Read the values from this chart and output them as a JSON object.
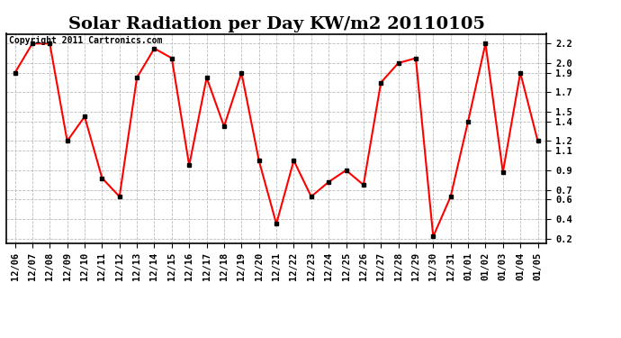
{
  "title": "Solar Radiation per Day KW/m2 20110105",
  "copyright_text": "Copyright 2011 Cartronics.com",
  "labels": [
    "12/06",
    "12/07",
    "12/08",
    "12/09",
    "12/10",
    "12/11",
    "12/12",
    "12/13",
    "12/14",
    "12/15",
    "12/16",
    "12/17",
    "12/18",
    "12/19",
    "12/20",
    "12/21",
    "12/22",
    "12/23",
    "12/24",
    "12/25",
    "12/26",
    "12/27",
    "12/28",
    "12/29",
    "12/30",
    "12/31",
    "01/01",
    "01/02",
    "01/03",
    "01/04",
    "01/05"
  ],
  "values": [
    1.9,
    2.2,
    2.2,
    1.2,
    1.45,
    0.82,
    0.63,
    1.85,
    2.15,
    2.05,
    0.95,
    1.85,
    1.35,
    1.9,
    1.0,
    0.35,
    1.0,
    0.63,
    0.78,
    0.9,
    0.75,
    1.8,
    2.0,
    2.05,
    0.22,
    0.63,
    1.4,
    2.2,
    0.88,
    1.9,
    1.2
  ],
  "line_color": "#ff0000",
  "marker_color": "#000000",
  "bg_color": "#ffffff",
  "grid_color": "#bbbbbb",
  "ylim": [
    0.15,
    2.3
  ],
  "yticks": [
    0.2,
    0.4,
    0.6,
    0.7,
    0.9,
    1.1,
    1.2,
    1.4,
    1.5,
    1.7,
    1.9,
    2.0,
    2.2
  ],
  "title_fontsize": 14,
  "tick_fontsize": 7.5,
  "copyright_fontsize": 7
}
